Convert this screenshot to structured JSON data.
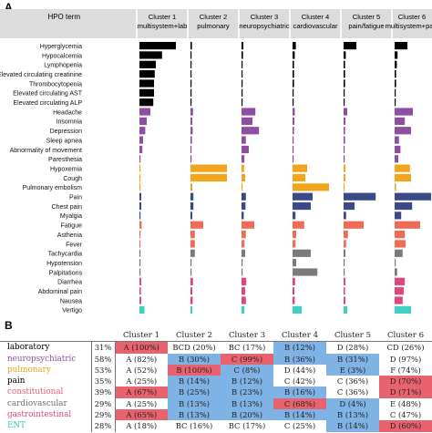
{
  "panel_a_letter": "A",
  "panel_b_letter": "B",
  "chart_data": {
    "type": "bar",
    "orientation": "horizontal",
    "facets": true,
    "header_first": "HPO term",
    "clusters": [
      {
        "line1": "Cluster 1",
        "line2": "multisystem+lab"
      },
      {
        "line1": "Cluster 2",
        "line2": "pulmonary"
      },
      {
        "line1": "Cluster 3",
        "line2": "neuropsychiatric"
      },
      {
        "line1": "Cluster 4",
        "line2": "cardiovascular"
      },
      {
        "line1": "Cluster 5",
        "line2": "pain/fatigue"
      },
      {
        "line1": "Cluster 6",
        "line2": "multisystem+pain"
      }
    ],
    "categories": [
      "Hyperglycemia",
      "Hypocalcemia",
      "Lymphopenia",
      "Elevated circulating creatinine",
      "Thrombocytopenia",
      "Elevated circulating AST",
      "Elevated circulating ALP",
      "Headache",
      "Insomnia",
      "Depression",
      "Sleep apnea",
      "Abnormality of movement",
      "Paresthesia",
      "Hypoxemia",
      "Cough",
      "Pulmonary embolism",
      "Pain",
      "Chest pain",
      "Myalgia",
      "Fatigue",
      "Asthenia",
      "Fever",
      "Tachycardia",
      "Hypotension",
      "Palpitations",
      "Diarrhea",
      "Abdominal pain",
      "Nausea",
      "Vertigo"
    ],
    "groups": [
      "laboratory",
      "laboratory",
      "laboratory",
      "laboratory",
      "laboratory",
      "laboratory",
      "laboratory",
      "neuropsychiatric",
      "neuropsychiatric",
      "neuropsychiatric",
      "neuropsychiatric",
      "neuropsychiatric",
      "neuropsychiatric",
      "pulmonary",
      "pulmonary",
      "pulmonary",
      "pain",
      "pain",
      "pain",
      "constitutional",
      "constitutional",
      "constitutional",
      "cardiovascular",
      "cardiovascular",
      "cardiovascular",
      "gastrointestinal",
      "gastrointestinal",
      "gastrointestinal",
      "ENT"
    ],
    "group_colors": {
      "laboratory": "#000000",
      "neuropsychiatric": "#8e4fa3",
      "pulmonary": "#f2a51b",
      "pain": "#3b4a87",
      "constitutional": "#f06b55",
      "cardiovascular": "#7b7b7b",
      "gastrointestinal": "#e0457b",
      "ENT": "#3ed1c1"
    },
    "series": [
      {
        "values": [
          1.0,
          0.62,
          0.45,
          0.42,
          0.4,
          0.4,
          0.38,
          0.3,
          0.2,
          0.16,
          0.1,
          0.08,
          0.03,
          0.0,
          0.0,
          0.02,
          0.05,
          0.05,
          0.02,
          0.06,
          0.03,
          0.03,
          0.03,
          0.01,
          0.02,
          0.05,
          0.04,
          0.05,
          0.14
        ]
      },
      {
        "values": [
          0.04,
          0.03,
          0.02,
          0.03,
          0.02,
          0.02,
          0.02,
          0.07,
          0.05,
          0.06,
          0.04,
          0.03,
          0.02,
          1.0,
          1.0,
          0.05,
          0.08,
          0.08,
          0.05,
          0.35,
          0.12,
          0.12,
          0.12,
          0.02,
          0.02,
          0.07,
          0.05,
          0.06,
          0.05
        ]
      },
      {
        "values": [
          0.05,
          0.04,
          0.03,
          0.03,
          0.03,
          0.02,
          0.02,
          0.38,
          0.3,
          0.48,
          0.12,
          0.2,
          0.08,
          0.07,
          0.1,
          0.02,
          0.12,
          0.11,
          0.06,
          0.35,
          0.12,
          0.08,
          0.1,
          0.02,
          0.02,
          0.13,
          0.1,
          0.12,
          0.08
        ]
      },
      {
        "values": [
          0.09,
          0.06,
          0.04,
          0.04,
          0.04,
          0.03,
          0.03,
          0.06,
          0.05,
          0.04,
          0.03,
          0.02,
          0.03,
          0.4,
          0.35,
          1.0,
          0.55,
          0.5,
          0.08,
          0.32,
          0.1,
          0.08,
          0.5,
          0.1,
          0.68,
          0.07,
          0.05,
          0.06,
          0.25
        ]
      },
      {
        "values": [
          0.35,
          0.06,
          0.04,
          0.04,
          0.04,
          0.03,
          0.03,
          0.1,
          0.05,
          0.04,
          0.04,
          0.03,
          0.03,
          0.05,
          0.05,
          0.02,
          0.88,
          0.3,
          0.07,
          0.55,
          0.12,
          0.07,
          0.05,
          0.02,
          0.02,
          0.05,
          0.04,
          0.05,
          0.1
        ]
      },
      {
        "values": [
          0.35,
          0.08,
          0.06,
          0.04,
          0.04,
          0.03,
          0.03,
          0.5,
          0.28,
          0.45,
          0.12,
          0.16,
          0.1,
          0.42,
          0.45,
          0.04,
          1.0,
          0.48,
          0.18,
          0.7,
          0.28,
          0.3,
          0.22,
          0.03,
          0.07,
          0.28,
          0.25,
          0.22,
          0.45
        ]
      }
    ]
  },
  "table": {
    "header": [
      "",
      "",
      "Cluster 1",
      "Cluster 2",
      "Cluster 3",
      "Cluster 4",
      "Cluster 5",
      "Cluster 6"
    ],
    "rows": [
      {
        "category": "laboratory",
        "color": "#000000",
        "pct": "31%",
        "cells": [
          {
            "text": "A (100%)",
            "bg": "#e8636e"
          },
          {
            "text": "BCD (20%)",
            "bg": ""
          },
          {
            "text": "BC (17%)",
            "bg": ""
          },
          {
            "text": "B (12%)",
            "bg": "#7fb2e5"
          },
          {
            "text": "D (28%)",
            "bg": ""
          },
          {
            "text": "CD (26%)",
            "bg": ""
          }
        ]
      },
      {
        "category": "neuropsychiatric",
        "color": "#8e4fa3",
        "pct": "58%",
        "cells": [
          {
            "text": "A (82%)",
            "bg": ""
          },
          {
            "text": "B (30%)",
            "bg": "#7fb2e5"
          },
          {
            "text": "C (99%)",
            "bg": "#e8636e"
          },
          {
            "text": "B (36%)",
            "bg": "#7fb2e5"
          },
          {
            "text": "B (31%)",
            "bg": "#7fb2e5"
          },
          {
            "text": "D (97%)",
            "bg": ""
          }
        ]
      },
      {
        "category": "pulmonary",
        "color": "#e9a21a",
        "pct": "53%",
        "cells": [
          {
            "text": "A (52%)",
            "bg": ""
          },
          {
            "text": "B (100%)",
            "bg": "#e8636e"
          },
          {
            "text": "C (8%)",
            "bg": "#7fb2e5"
          },
          {
            "text": "D (44%)",
            "bg": ""
          },
          {
            "text": "E (3%)",
            "bg": "#7fb2e5"
          },
          {
            "text": "F (74%)",
            "bg": ""
          }
        ]
      },
      {
        "category": "pain",
        "color": "#000000",
        "pct": "35%",
        "cells": [
          {
            "text": "A (25%)",
            "bg": ""
          },
          {
            "text": "B (14%)",
            "bg": "#7fb2e5"
          },
          {
            "text": "B (12%)",
            "bg": "#7fb2e5"
          },
          {
            "text": "C (42%)",
            "bg": ""
          },
          {
            "text": "C (36%)",
            "bg": ""
          },
          {
            "text": "D (70%)",
            "bg": "#e8636e"
          }
        ]
      },
      {
        "category": "constitutional",
        "color": "#e8636e",
        "pct": "39%",
        "cells": [
          {
            "text": "A (67%)",
            "bg": "#e8636e"
          },
          {
            "text": "B (25%)",
            "bg": "#7fb2e5"
          },
          {
            "text": "B (23%)",
            "bg": "#7fb2e5"
          },
          {
            "text": "B (16%)",
            "bg": "#7fb2e5"
          },
          {
            "text": "C (36%)",
            "bg": ""
          },
          {
            "text": "D (71%)",
            "bg": "#e8636e"
          }
        ]
      },
      {
        "category": "cardiovascular",
        "color": "#6f6f6f",
        "pct": "29%",
        "cells": [
          {
            "text": "A (25%)",
            "bg": ""
          },
          {
            "text": "B (13%)",
            "bg": "#7fb2e5"
          },
          {
            "text": "B (13%)",
            "bg": "#7fb2e5"
          },
          {
            "text": "C (68%)",
            "bg": "#e8636e"
          },
          {
            "text": "D (4%)",
            "bg": "#7fb2e5"
          },
          {
            "text": "E (48%)",
            "bg": ""
          }
        ]
      },
      {
        "category": "gastrointestinal",
        "color": "#d9487a",
        "pct": "29%",
        "cells": [
          {
            "text": "A (65%)",
            "bg": "#e8636e"
          },
          {
            "text": "B (13%)",
            "bg": "#7fb2e5"
          },
          {
            "text": "B (20%)",
            "bg": "#7fb2e5"
          },
          {
            "text": "B (14%)",
            "bg": "#7fb2e5"
          },
          {
            "text": "B (13%)",
            "bg": "#7fb2e5"
          },
          {
            "text": "C (47%)",
            "bg": ""
          }
        ]
      },
      {
        "category": "ENT",
        "color": "#36c9bf",
        "pct": "28%",
        "cells": [
          {
            "text": "A (18%)",
            "bg": ""
          },
          {
            "text": "BC (16%)",
            "bg": ""
          },
          {
            "text": "BC (17%)",
            "bg": ""
          },
          {
            "text": "C (25%)",
            "bg": ""
          },
          {
            "text": "B (14%)",
            "bg": "#7fb2e5"
          },
          {
            "text": "D (60%)",
            "bg": "#e8636e"
          }
        ]
      }
    ]
  }
}
